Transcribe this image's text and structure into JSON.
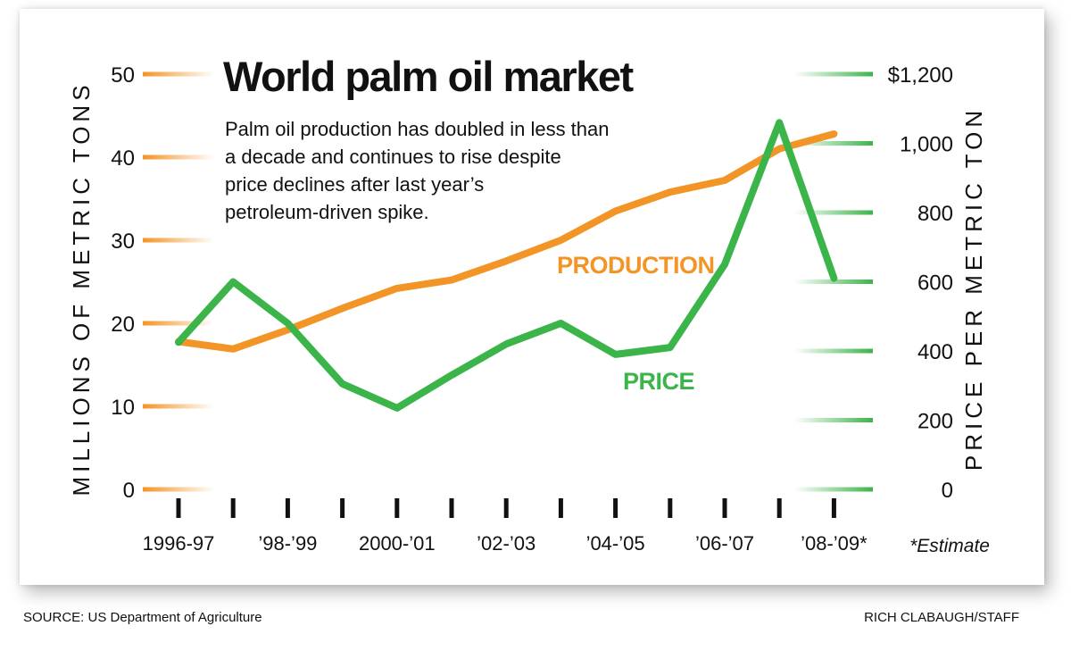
{
  "colors": {
    "production": "#f39426",
    "price": "#3bb44a",
    "text": "#111111"
  },
  "chart_data": {
    "type": "line",
    "title": "World palm oil market",
    "subtitle_lines": [
      "Palm oil production has doubled in less than",
      "a decade and continues to rise despite",
      "price declines after last year’s",
      "petroleum-driven spike."
    ],
    "x_tick_labels": [
      "1996-97",
      "’98-’99",
      "2000-’01",
      "’02-’03",
      "’04-’05",
      "’06-’07",
      "’08-’09*"
    ],
    "x_tick_label_positions": [
      0,
      2,
      4,
      6,
      8,
      10,
      12
    ],
    "x_count": 13,
    "left_axis": {
      "label": "MILLIONS OF METRIC TONS",
      "ticks": [
        "0",
        "10",
        "20",
        "30",
        "40",
        "50"
      ],
      "tick_values": [
        0,
        10,
        20,
        30,
        40,
        50
      ],
      "range": [
        0,
        50
      ]
    },
    "right_axis": {
      "label": "PRICE PER METRIC TON",
      "ticks": [
        "0",
        "200",
        "400",
        "600",
        "800",
        "1,000",
        "$1,200"
      ],
      "tick_values": [
        0,
        200,
        400,
        600,
        800,
        1000,
        1200
      ],
      "range": [
        0,
        1200
      ]
    },
    "series": [
      {
        "name": "PRODUCTION",
        "axis": "left",
        "values": [
          17.8,
          16.9,
          19.2,
          21.8,
          24.2,
          25.2,
          27.5,
          30.0,
          33.5,
          35.8,
          37.2,
          41.0,
          42.8
        ]
      },
      {
        "name": "PRICE",
        "axis": "right",
        "values": [
          425,
          600,
          480,
          305,
          235,
          330,
          420,
          480,
          390,
          410,
          650,
          1060,
          610
        ]
      }
    ],
    "estimate_note": "*Estimate"
  },
  "footer": {
    "source": "SOURCE: US Department of Agriculture",
    "credit": "RICH CLABAUGH/STAFF"
  }
}
